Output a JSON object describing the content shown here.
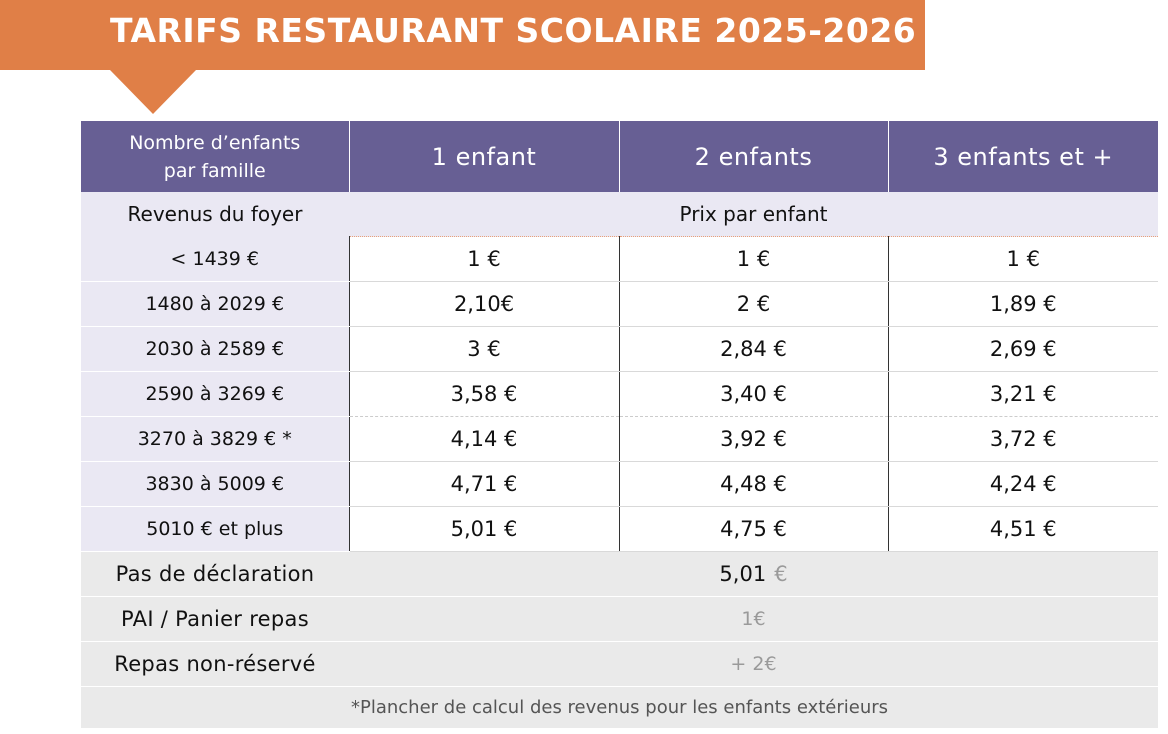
{
  "title": "TARIFS RESTAURANT SCOLAIRE 2025-2026",
  "colors": {
    "banner": "#e07f47",
    "header": "#675f94",
    "label_bg": "#eae8f3",
    "footer_bg": "#eaeaea"
  },
  "header": {
    "first_line1": "Nombre d’enfants",
    "first_line2": "par famille",
    "cols": [
      "1 enfant",
      "2 enfants",
      "3 enfants et +"
    ]
  },
  "subheader": {
    "left": "Revenus du foyer",
    "right": "Prix par enfant"
  },
  "rows": [
    {
      "label": "< 1439 €",
      "values": [
        "1 €",
        "1 €",
        "1 €"
      ]
    },
    {
      "label": "1480 à 2029 €",
      "values": [
        "2,10€",
        "2 €",
        "1,89 €"
      ]
    },
    {
      "label": "2030 à 2589 €",
      "values": [
        "3 €",
        "2,84 €",
        "2,69 €"
      ]
    },
    {
      "label": "2590 à 3269 €",
      "values": [
        "3,58 €",
        "3,40 €",
        "3,21 €"
      ]
    },
    {
      "label": "3270 à 3829 € *",
      "values": [
        "4,14 €",
        "3,92 €",
        "3,72 €"
      ]
    },
    {
      "label": "3830 à 5009 €",
      "values": [
        "4,71 €",
        "4,48 €",
        "4,24 €"
      ]
    },
    {
      "label": "5010 € et plus",
      "values": [
        "5,01 €",
        "4,75 €",
        "4,51 €"
      ]
    }
  ],
  "footer_rows": [
    {
      "label": "Pas de déclaration",
      "value": "5,01",
      "value_suffix": "€"
    },
    {
      "label": "PAI / Panier repas",
      "value": "1€"
    },
    {
      "label": "Repas non-réservé",
      "value": "+ 2€"
    }
  ],
  "note": "*Plancher de calcul des revenus pour les enfants extérieurs"
}
